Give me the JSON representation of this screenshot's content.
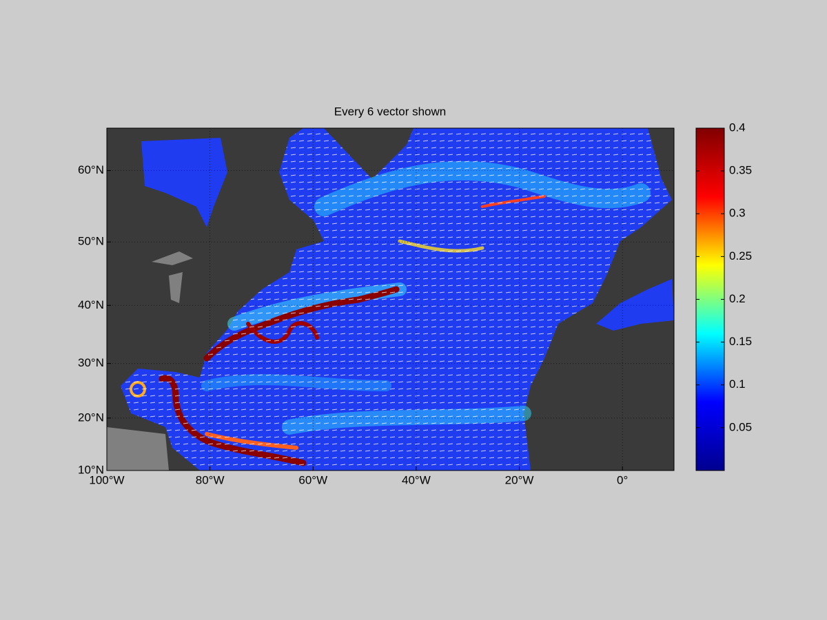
{
  "chart_data": {
    "type": "map",
    "title": "Every 6 vector shown",
    "projection": "miller",
    "xlim": [
      -100,
      10
    ],
    "xticks": [
      {
        "value": -100,
        "label": "100°W"
      },
      {
        "value": -80,
        "label": "80°W"
      },
      {
        "value": -60,
        "label": "60°W"
      },
      {
        "value": -40,
        "label": "40°W"
      },
      {
        "value": -20,
        "label": "20°W"
      },
      {
        "value": 0,
        "label": "0°"
      }
    ],
    "ylim": [
      10,
      65.3
    ],
    "yticks": [
      {
        "value": 10,
        "label": "10°N"
      },
      {
        "value": 20,
        "label": "20°N"
      },
      {
        "value": 30,
        "label": "30°N"
      },
      {
        "value": 40,
        "label": "40°N"
      },
      {
        "value": 50,
        "label": "50°N"
      },
      {
        "value": 60,
        "label": "60°N"
      }
    ],
    "grid": true,
    "colorbar": {
      "lim": [
        0,
        0.4
      ],
      "ticks": [
        0.05,
        0.1,
        0.15,
        0.2,
        0.25,
        0.3,
        0.35,
        0.4
      ],
      "colors": [
        "#00008f",
        "#0000ff",
        "#00ffff",
        "#ffff00",
        "#ff0000",
        "#800000"
      ]
    }
  }
}
